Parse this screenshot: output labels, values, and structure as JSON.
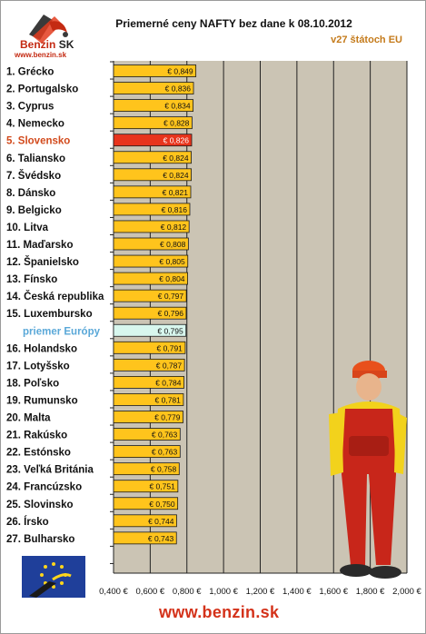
{
  "header": {
    "logo_text": "Benzin",
    "logo_suffix": "SK",
    "logo_url": "www.benzin.sk",
    "title": "Priemerné ceny NAFTY bez dane k 08.10.2012",
    "subtitle": "v27 štátoch EU"
  },
  "footer": {
    "url": "www.benzin.sk"
  },
  "colors": {
    "bar": "#ffc41c",
    "highlight_bar": "#e8341c",
    "average_bar": "#d8f7ee",
    "plot_bg": "#cbc4b4",
    "highlight_label": "#d24a1c",
    "average_label": "#5aa8d8"
  },
  "chart_data": {
    "type": "bar",
    "orientation": "horizontal",
    "title": "Priemerné ceny NAFTY bez dane k 08.10.2012",
    "subtitle": "v27 štátoch EU",
    "xlim": [
      0.4,
      2.0
    ],
    "x_ticks": [
      "0,400 €",
      "0,600 €",
      "0,800 €",
      "1,000 €",
      "1,200 €",
      "1,400 €",
      "1,600 €",
      "1,800 €",
      "2,000 €"
    ],
    "grid": true,
    "categories": [
      "1. Grécko",
      "2. Portugalsko",
      "3. Cyprus",
      "4. Nemecko",
      "5. Slovensko",
      "6. Taliansko",
      "7. Švédsko",
      "8. Dánsko",
      "9. Belgicko",
      "10. Litva",
      "11. Maďarsko",
      "12. Španielsko",
      "13. Fínsko",
      "14. Česká republika",
      "15. Luxembursko",
      "priemer Európy",
      "16. Holandsko",
      "17. Lotyšsko",
      "18. Poľsko",
      "19. Rumunsko",
      "20. Malta",
      "21. Rakúsko",
      "22. Estónsko",
      "23. Veľká Británia",
      "24. Francúzsko",
      "25. Slovinsko",
      "26. Írsko",
      "27. Bulharsko"
    ],
    "values": [
      0.849,
      0.836,
      0.834,
      0.828,
      0.826,
      0.824,
      0.824,
      0.821,
      0.816,
      0.812,
      0.808,
      0.805,
      0.804,
      0.797,
      0.796,
      0.795,
      0.791,
      0.787,
      0.784,
      0.781,
      0.779,
      0.763,
      0.763,
      0.758,
      0.751,
      0.75,
      0.744,
      0.743
    ],
    "value_labels": [
      "€ 0,849",
      "€ 0,836",
      "€ 0,834",
      "€ 0,828",
      "€ 0,826",
      "€ 0,824",
      "€ 0,824",
      "€ 0,821",
      "€ 0,816",
      "€ 0,812",
      "€ 0,808",
      "€ 0,805",
      "€ 0,804",
      "€ 0,797",
      "€ 0,796",
      "€ 0,795",
      "€ 0,791",
      "€ 0,787",
      "€ 0,784",
      "€ 0,781",
      "€ 0,779",
      "€ 0,763",
      "€ 0,763",
      "€ 0,758",
      "€ 0,751",
      "€ 0,750",
      "€ 0,744",
      "€ 0,743"
    ],
    "highlight": "5. Slovensko",
    "average": "priemer Európy"
  }
}
